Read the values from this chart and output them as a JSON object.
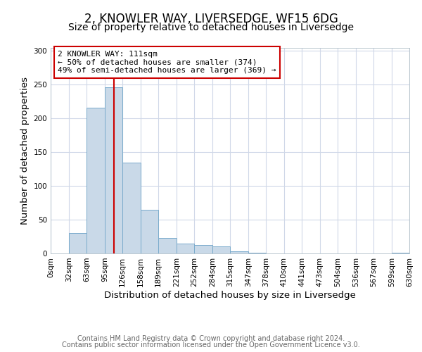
{
  "title": "2, KNOWLER WAY, LIVERSEDGE, WF15 6DG",
  "subtitle": "Size of property relative to detached houses in Liversedge",
  "xlabel": "Distribution of detached houses by size in Liversedge",
  "ylabel": "Number of detached properties",
  "bin_edges": [
    0,
    32,
    63,
    95,
    126,
    158,
    189,
    221,
    252,
    284,
    315,
    347,
    378,
    410,
    441,
    473,
    504,
    536,
    567,
    599,
    630
  ],
  "bar_heights": [
    0,
    30,
    216,
    246,
    135,
    65,
    23,
    15,
    13,
    10,
    3,
    1,
    0,
    0,
    0,
    0,
    0,
    0,
    0,
    1
  ],
  "bar_color": "#c9d9e8",
  "bar_edge_color": "#7aaBcc",
  "vline_x": 111,
  "vline_color": "#cc0000",
  "annotation_line1": "2 KNOWLER WAY: 111sqm",
  "annotation_line2": "← 50% of detached houses are smaller (374)",
  "annotation_line3": "49% of semi-detached houses are larger (369) →",
  "annotation_box_color": "#cc0000",
  "ylim": [
    0,
    305
  ],
  "yticks": [
    0,
    50,
    100,
    150,
    200,
    250,
    300
  ],
  "tick_labels": [
    "0sqm",
    "32sqm",
    "63sqm",
    "95sqm",
    "126sqm",
    "158sqm",
    "189sqm",
    "221sqm",
    "252sqm",
    "284sqm",
    "315sqm",
    "347sqm",
    "378sqm",
    "410sqm",
    "441sqm",
    "473sqm",
    "504sqm",
    "536sqm",
    "567sqm",
    "599sqm",
    "630sqm"
  ],
  "footer_line1": "Contains HM Land Registry data © Crown copyright and database right 2024.",
  "footer_line2": "Contains public sector information licensed under the Open Government Licence v3.0.",
  "background_color": "#ffffff",
  "grid_color": "#d0d8e8",
  "title_fontsize": 12,
  "subtitle_fontsize": 10,
  "axis_label_fontsize": 9.5,
  "tick_fontsize": 7.5,
  "annotation_fontsize": 8,
  "footer_fontsize": 7
}
